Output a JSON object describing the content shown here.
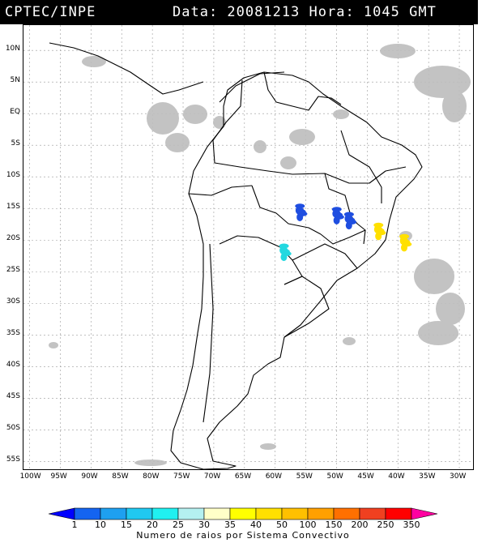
{
  "header": {
    "source": "CPTEC/INPE",
    "datetime": "Data: 20081213 Hora: 1045 GMT"
  },
  "map": {
    "lat_labels": [
      "10N",
      "5N",
      "EQ",
      "5S",
      "10S",
      "15S",
      "20S",
      "25S",
      "30S",
      "35S",
      "40S",
      "45S",
      "50S",
      "55S"
    ],
    "lat_values": [
      10,
      5,
      0,
      -5,
      -10,
      -15,
      -20,
      -25,
      -30,
      -35,
      -40,
      -45,
      -50,
      -55
    ],
    "lon_labels": [
      "100W",
      "95W",
      "90W",
      "85W",
      "80W",
      "75W",
      "70W",
      "65W",
      "60W",
      "55W",
      "50W",
      "45W",
      "40W",
      "35W",
      "30W"
    ],
    "lon_values": [
      -100,
      -95,
      -90,
      -85,
      -80,
      -75,
      -70,
      -65,
      -60,
      -55,
      -50,
      -45,
      -40,
      -35,
      -30
    ],
    "extent": {
      "lon": [
        -101,
        -27.5
      ],
      "lat": [
        14,
        -56.5
      ]
    },
    "grid": true,
    "grid_color": "#9a9a9a",
    "cloud_color": "#bdbdbd",
    "lightning_systems": [
      {
        "color": "#1f4ee0",
        "lon": -55.8,
        "lat": -15.5
      },
      {
        "color": "#1f4ee0",
        "lon": -49.8,
        "lat": -16.0
      },
      {
        "color": "#1f4ee0",
        "lon": -47.8,
        "lat": -16.8
      },
      {
        "color": "#23d8e0",
        "lon": -58.4,
        "lat": -21.8
      },
      {
        "color": "#ffe000",
        "lon": -43.0,
        "lat": -18.5
      },
      {
        "color": "#ffe000",
        "lon": -38.8,
        "lat": -20.3
      }
    ]
  },
  "legend": {
    "caption": "Numero de raios por Sistema Convectivo",
    "labels": [
      "1",
      "10",
      "15",
      "20",
      "25",
      "30",
      "35",
      "40",
      "50",
      "100",
      "150",
      "200",
      "250",
      "350"
    ],
    "colors": [
      "#0000ff",
      "#1464f0",
      "#1ea0f0",
      "#20c8f0",
      "#20f0f0",
      "#b4f0f0",
      "#ffffc8",
      "#ffff00",
      "#ffe000",
      "#ffc000",
      "#ffa000",
      "#ff7000",
      "#f04020",
      "#ff0000",
      "#ff00a0"
    ]
  }
}
